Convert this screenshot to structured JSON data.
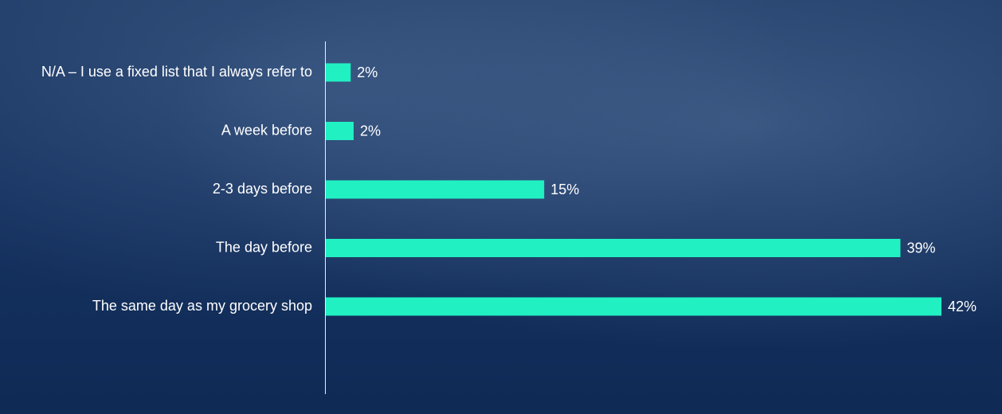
{
  "chart_data": {
    "type": "bar",
    "orientation": "horizontal",
    "categories": [
      "N/A – I use a fixed list that I always refer to",
      "A week before",
      "2-3 days before",
      "The day before",
      "The same day as my grocery shop"
    ],
    "values": [
      1.7,
      1.9,
      14.9,
      39.2,
      42
    ],
    "value_labels": [
      "2%",
      "2%",
      "15%",
      "39%",
      "42%"
    ],
    "color": "#21f0c3"
  }
}
